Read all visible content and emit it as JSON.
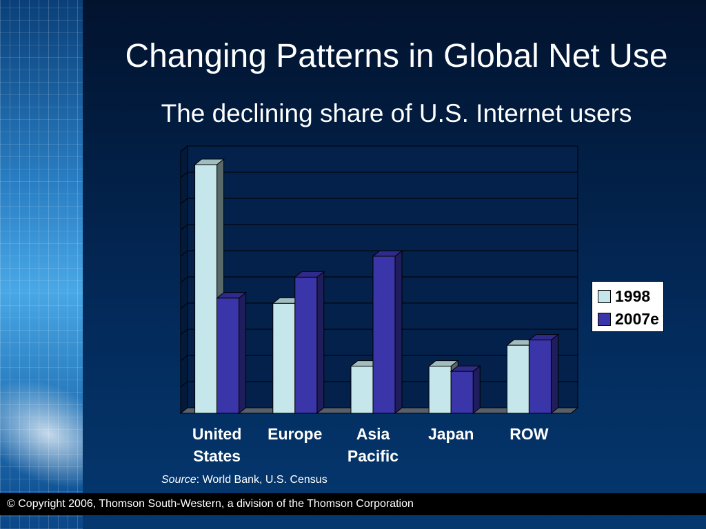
{
  "slide": {
    "title": "Changing Patterns in Global Net Use",
    "subtitle": "The declining share of U.S. Internet users",
    "source_label": "Source",
    "source_text": ": World Bank, U.S. Census",
    "footer": "© Copyright 2006, Thomson South-Western, a division of the Thomson Corporation"
  },
  "colors": {
    "series_1998": "#c5e6ea",
    "series_2007e": "#3a35a8",
    "background": "#032a5a",
    "accent_sidebar": "#2a7fc4"
  },
  "chart_data": {
    "type": "bar",
    "title": "",
    "xlabel": "",
    "ylabel": "",
    "categories": [
      "United States",
      "Europe",
      "Asia Pacific",
      "Japan",
      "ROW"
    ],
    "category_lines": [
      [
        "United",
        "States"
      ],
      [
        "Europe"
      ],
      [
        "Asia",
        "Pacific"
      ],
      [
        "Japan"
      ],
      [
        "ROW"
      ]
    ],
    "series": [
      {
        "name": "1998",
        "values": [
          95,
          42,
          18,
          18,
          26
        ]
      },
      {
        "name": "2007e",
        "values": [
          44,
          52,
          60,
          16,
          28
        ]
      }
    ],
    "ylim": [
      0,
      100
    ],
    "grid": true,
    "y_tick_labels": false,
    "three_d": true,
    "legend_position": "right"
  }
}
